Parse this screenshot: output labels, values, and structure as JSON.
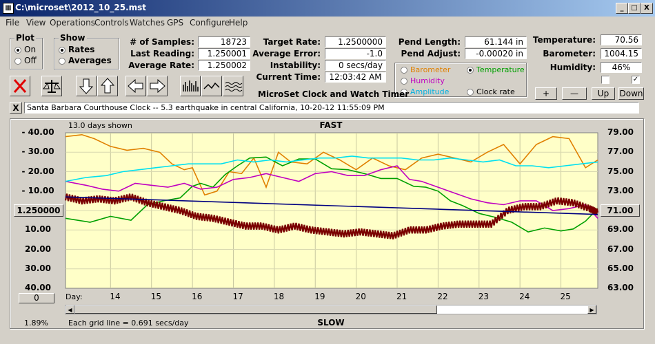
{
  "window": {
    "title": "C:\\microset\\2012_10_25.mst",
    "minimize": "_",
    "maximize": "□",
    "close": "X"
  },
  "menu": [
    "File",
    "View",
    "Operations",
    "Controls",
    "Watches",
    "GPS",
    "Configure",
    "Help"
  ],
  "plot_group": {
    "label": "Plot",
    "on": "On",
    "off": "Off",
    "selected": "On"
  },
  "show_group": {
    "label": "Show",
    "rates": "Rates",
    "averages": "Averages",
    "selected": "Rates"
  },
  "stats": {
    "samples_label": "# of Samples:",
    "samples": "18723",
    "last_reading_label": "Last Reading:",
    "last_reading": "1.250001",
    "average_rate_label": "Average Rate:",
    "average_rate": "1.250002",
    "target_rate_label": "Target Rate:",
    "target_rate": "1.2500000",
    "average_error_label": "Average Error:",
    "average_error": "-1.0 sec/week",
    "instability_label": "Instability:",
    "instability": "0 secs/day",
    "current_time_label": "Current Time:",
    "current_time": "12:03:42 AM",
    "pend_length_label": "Pend Length:",
    "pend_length": "61.144 in",
    "pend_adjust_label": "Pend Adjust:",
    "pend_adjust": "-0.00020 in",
    "temperature_label": "Temperature:",
    "temperature": "70.56",
    "barometer_label": "Barometer:",
    "barometer": "1004.15",
    "humidity_label": "Humidity:",
    "humidity": "46%"
  },
  "sensors": {
    "barometer": {
      "label": "Barometer",
      "color": "#e08000"
    },
    "temperature": {
      "label": "Temperature",
      "color": "#00a000",
      "selected": true
    },
    "humidity": {
      "label": "Humidity",
      "color": "#c000c0"
    },
    "amplitude": {
      "label": "Amplitude",
      "color": "#00c0e0"
    },
    "clock_rate": {
      "label": "Clock rate",
      "color": "#000000"
    }
  },
  "app_caption": "MicroSet Clock and Watch Timer",
  "adjust_buttons": [
    "+",
    "—",
    "Up",
    "Down"
  ],
  "clock_name": "Santa Barbara Courthouse Clock  --  5.3 earthquake in central California, 10-20-12 11:55:09 PM",
  "clear_button": "X",
  "chart_data": {
    "type": "line",
    "title": "FAST",
    "bottom_label": "SLOW",
    "days_shown": "13.0 days shown",
    "grid_note": "Each grid line = 0.691 secs/day",
    "percent": "1.89%",
    "rate_readout": "1.250000",
    "temp_readout": "71.00",
    "zero_button": "0",
    "xlabel": "Day:",
    "x_ticks": [
      "14",
      "15",
      "16",
      "17",
      "18",
      "19",
      "20",
      "21",
      "22",
      "23",
      "24",
      "25"
    ],
    "left_ticks": [
      "40.00",
      "30.00",
      "20.00",
      "10.00",
      "10.00",
      "20.00",
      "30.00",
      "40.00"
    ],
    "left_tick_signs": [
      "-",
      "-",
      "-",
      "-",
      "",
      "",
      "",
      ""
    ],
    "right_ticks": [
      "79.00",
      "77.00",
      "75.00",
      "73.00",
      "71.00",
      "69.00",
      "67.00",
      "65.00",
      "63.00"
    ],
    "x_range": [
      12.9,
      25.9
    ],
    "left_range": [
      40,
      -40
    ],
    "right_range": [
      79,
      63
    ],
    "series": [
      {
        "name": "Barometer",
        "color": "#e08000",
        "axis": "left",
        "x": [
          12.9,
          13.3,
          13.6,
          14.0,
          14.4,
          14.8,
          15.2,
          15.5,
          15.8,
          16.0,
          16.3,
          16.6,
          16.9,
          17.2,
          17.5,
          17.8,
          18.1,
          18.4,
          18.8,
          19.2,
          19.6,
          20.0,
          20.4,
          20.8,
          21.2,
          21.6,
          22.0,
          22.4,
          22.8,
          23.2,
          23.6,
          24.0,
          24.4,
          24.8,
          25.2,
          25.6,
          25.9
        ],
        "y": [
          38,
          39,
          37,
          33,
          31,
          32,
          30,
          24,
          21,
          22,
          8,
          10,
          20,
          19,
          27,
          12,
          30,
          25,
          24,
          30,
          26,
          21,
          27,
          23,
          21,
          27,
          29,
          27,
          25,
          30,
          34,
          24,
          34,
          38,
          37,
          22,
          26
        ]
      },
      {
        "name": "Temperature",
        "color": "#00a000",
        "axis": "right",
        "x": [
          12.9,
          13.5,
          14.0,
          14.5,
          14.9,
          15.3,
          15.7,
          16.0,
          16.2,
          16.5,
          16.8,
          17.1,
          17.4,
          17.8,
          18.2,
          18.6,
          19.0,
          19.4,
          19.8,
          20.2,
          20.6,
          21.0,
          21.4,
          21.7,
          22.0,
          22.3,
          22.6,
          23.0,
          23.4,
          23.8,
          24.2,
          24.6,
          25.0,
          25.3,
          25.6,
          25.9
        ],
        "y": [
          70.2,
          69.8,
          70.4,
          70.0,
          71.6,
          72.0,
          72.3,
          73.5,
          73.8,
          73.4,
          74.7,
          75.6,
          76.4,
          76.5,
          75.6,
          76.3,
          76.3,
          75.3,
          75.2,
          74.8,
          74.3,
          74.3,
          73.5,
          73.4,
          73.0,
          72.0,
          71.5,
          70.7,
          70.3,
          69.8,
          68.8,
          69.2,
          68.9,
          69.1,
          69.9,
          71.2
        ]
      },
      {
        "name": "Humidity",
        "color": "#c000c0",
        "axis": "left",
        "x": [
          12.9,
          13.4,
          13.8,
          14.2,
          14.6,
          15.0,
          15.4,
          15.8,
          16.2,
          16.6,
          17.0,
          17.4,
          17.8,
          18.2,
          18.6,
          19.0,
          19.4,
          19.8,
          20.2,
          20.6,
          21.0,
          21.3,
          21.6,
          22.0,
          22.4,
          22.8,
          23.2,
          23.6,
          24.0,
          24.4,
          24.8,
          25.2,
          25.6,
          25.9
        ],
        "y": [
          15,
          13,
          11,
          10,
          14,
          13,
          12,
          14,
          11,
          12,
          16,
          17,
          19,
          17,
          15,
          19,
          20,
          18,
          18,
          21,
          23,
          16,
          15,
          12,
          9,
          6,
          4,
          3,
          5,
          5,
          0,
          1,
          3,
          -4
        ]
      },
      {
        "name": "Amplitude",
        "color": "#00e0f0",
        "axis": "left",
        "x": [
          12.9,
          13.4,
          13.9,
          14.3,
          14.7,
          15.1,
          15.5,
          15.9,
          16.3,
          16.7,
          17.1,
          17.5,
          17.9,
          18.3,
          18.7,
          19.1,
          19.5,
          19.9,
          20.3,
          20.7,
          21.1,
          21.5,
          21.9,
          22.3,
          22.7,
          23.1,
          23.5,
          23.9,
          24.3,
          24.7,
          25.1,
          25.5,
          25.9
        ],
        "y": [
          15,
          17,
          18,
          20,
          21,
          22,
          23,
          24,
          24,
          24,
          26,
          25,
          26,
          25,
          26,
          27,
          27,
          28,
          27,
          27,
          27,
          26,
          26,
          27,
          26,
          25,
          26,
          23,
          23,
          22,
          23,
          24,
          25
        ]
      },
      {
        "name": "Rate",
        "color": "#7a0000",
        "axis": "left",
        "x": [
          12.9,
          13.3,
          13.7,
          14.1,
          14.5,
          14.9,
          15.3,
          15.7,
          16.1,
          16.5,
          16.9,
          17.3,
          17.7,
          18.1,
          18.5,
          18.9,
          19.3,
          19.7,
          20.1,
          20.5,
          20.9,
          21.3,
          21.7,
          22.1,
          22.5,
          22.9,
          23.3,
          23.7,
          24.1,
          24.5,
          24.9,
          25.3,
          25.7,
          25.9
        ],
        "y": [
          7,
          5,
          6,
          5,
          7,
          4,
          2,
          0,
          -3,
          -4,
          -6,
          -8,
          -8,
          -10,
          -8,
          -10,
          -11,
          -12,
          -11,
          -12,
          -13,
          -10,
          -10,
          -8,
          -7,
          -7,
          -7,
          0,
          2,
          2,
          5,
          4,
          1,
          -1
        ]
      },
      {
        "name": "Average",
        "color": "#000080",
        "axis": "left",
        "x": [
          12.9,
          25.9
        ],
        "y": [
          7,
          -2
        ]
      }
    ]
  }
}
